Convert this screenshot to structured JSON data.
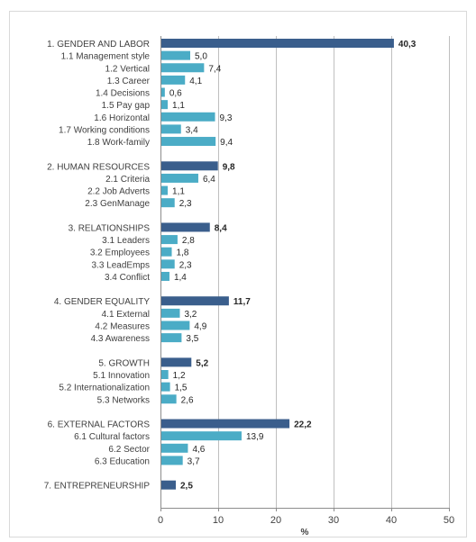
{
  "chart_data": {
    "type": "bar",
    "orientation": "horizontal",
    "xlabel": "%",
    "xlim": [
      0,
      50
    ],
    "xticks": [
      0,
      10,
      20,
      30,
      40,
      50
    ],
    "grid": "vertical",
    "colors": {
      "group": "#3A5E8C",
      "sub": "#4BACC6",
      "grid": "#BFBFBF"
    },
    "categories": [
      {
        "label": "1. GENDER AND LABOR",
        "value": 40.3,
        "value_label": "40,3",
        "kind": "group"
      },
      {
        "label": "1.1 Management style",
        "value": 5.0,
        "value_label": "5,0",
        "kind": "sub"
      },
      {
        "label": "1.2 Vertical",
        "value": 7.4,
        "value_label": "7,4",
        "kind": "sub"
      },
      {
        "label": "1.3 Career",
        "value": 4.1,
        "value_label": "4,1",
        "kind": "sub"
      },
      {
        "label": "1.4 Decisions",
        "value": 0.6,
        "value_label": "0,6",
        "kind": "sub"
      },
      {
        "label": "1.5 Pay gap",
        "value": 1.1,
        "value_label": "1,1",
        "kind": "sub"
      },
      {
        "label": "1.6 Horizontal",
        "value": 9.3,
        "value_label": "9,3",
        "kind": "sub"
      },
      {
        "label": "1.7 Working conditions",
        "value": 3.4,
        "value_label": "3,4",
        "kind": "sub"
      },
      {
        "label": "1.8 Work-family",
        "value": 9.4,
        "value_label": "9,4",
        "kind": "sub"
      },
      {
        "label": "",
        "value": null,
        "value_label": "",
        "kind": "gap"
      },
      {
        "label": "2. HUMAN RESOURCES",
        "value": 9.8,
        "value_label": "9,8",
        "kind": "group"
      },
      {
        "label": "2.1 Criteria",
        "value": 6.4,
        "value_label": "6,4",
        "kind": "sub"
      },
      {
        "label": "2.2  Job Adverts",
        "value": 1.1,
        "value_label": "1,1",
        "kind": "sub"
      },
      {
        "label": "2.3 GenManage",
        "value": 2.3,
        "value_label": "2,3",
        "kind": "sub"
      },
      {
        "label": "",
        "value": null,
        "value_label": "",
        "kind": "gap"
      },
      {
        "label": "3. RELATIONSHIPS",
        "value": 8.4,
        "value_label": "8,4",
        "kind": "group"
      },
      {
        "label": "3.1 Leaders",
        "value": 2.8,
        "value_label": "2,8",
        "kind": "sub"
      },
      {
        "label": "3.2 Employees",
        "value": 1.8,
        "value_label": "1,8",
        "kind": "sub"
      },
      {
        "label": "3.3 LeadEmps",
        "value": 2.3,
        "value_label": "2,3",
        "kind": "sub"
      },
      {
        "label": "3.4 Conflict",
        "value": 1.4,
        "value_label": "1,4",
        "kind": "sub"
      },
      {
        "label": "",
        "value": null,
        "value_label": "",
        "kind": "gap"
      },
      {
        "label": "4. GENDER EQUALITY",
        "value": 11.7,
        "value_label": "11,7",
        "kind": "group"
      },
      {
        "label": "4.1 External",
        "value": 3.2,
        "value_label": "3,2",
        "kind": "sub"
      },
      {
        "label": "4.2 Measures",
        "value": 4.9,
        "value_label": "4,9",
        "kind": "sub"
      },
      {
        "label": "4.3 Awareness",
        "value": 3.5,
        "value_label": "3,5",
        "kind": "sub"
      },
      {
        "label": "",
        "value": null,
        "value_label": "",
        "kind": "gap"
      },
      {
        "label": "5. GROWTH",
        "value": 5.2,
        "value_label": "5,2",
        "kind": "group"
      },
      {
        "label": "5.1 Innovation",
        "value": 1.2,
        "value_label": "1,2",
        "kind": "sub"
      },
      {
        "label": "5.2 Internationalization",
        "value": 1.5,
        "value_label": "1,5",
        "kind": "sub"
      },
      {
        "label": "5.3 Networks",
        "value": 2.6,
        "value_label": "2,6",
        "kind": "sub"
      },
      {
        "label": "",
        "value": null,
        "value_label": "",
        "kind": "gap"
      },
      {
        "label": "6. EXTERNAL FACTORS",
        "value": 22.2,
        "value_label": "22,2",
        "kind": "group"
      },
      {
        "label": "6.1 Cultural factors",
        "value": 13.9,
        "value_label": "13,9",
        "kind": "sub"
      },
      {
        "label": "6.2 Sector",
        "value": 4.6,
        "value_label": "4,6",
        "kind": "sub"
      },
      {
        "label": "6.3 Education",
        "value": 3.7,
        "value_label": "3,7",
        "kind": "sub"
      },
      {
        "label": "",
        "value": null,
        "value_label": "",
        "kind": "gap"
      },
      {
        "label": "7. ENTREPRENEURSHIP",
        "value": 2.5,
        "value_label": "2,5",
        "kind": "group"
      }
    ]
  }
}
